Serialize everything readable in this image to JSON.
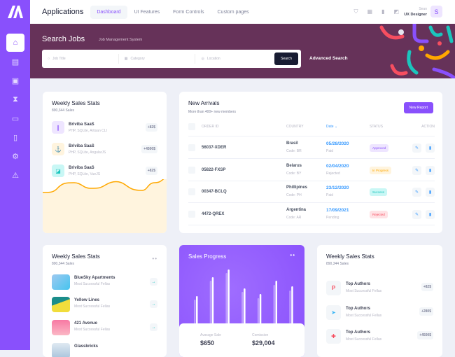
{
  "header": {
    "app_title": "Applications",
    "nav": [
      "Dashboard",
      "UI Features",
      "Form Controls",
      "Custom pages"
    ],
    "user_name": "Sean",
    "user_role": "UX Designer",
    "avatar_letter": "S"
  },
  "banner": {
    "title": "Search Jobs",
    "subtitle": "Job Management System",
    "fields": [
      "Job Title",
      "Category",
      "Location"
    ],
    "search_label": "Search",
    "advanced_label": "Advanced Search",
    "bg_color": "#663259"
  },
  "colors": {
    "accent": "#8950fc",
    "primary": "#3699ff"
  },
  "weekly1": {
    "title": "Weekly Sales Stats",
    "subtitle": "890,344 Sales",
    "items": [
      {
        "name": "Briviba SaaS",
        "sub": "PHP, SQLite, Artisan CLI",
        "value": "+82$"
      },
      {
        "name": "Briviba SaaS",
        "sub": "PHP, SQLite, AngularJS",
        "value": "+4500$"
      },
      {
        "name": "Briviba SaaS",
        "sub": "PHP, SQLite, VueJS",
        "value": "+82$"
      }
    ]
  },
  "arrivals": {
    "title": "New Arrivals",
    "subtitle": "More than 400+ new members",
    "button": "New Report",
    "columns": [
      "ORDER ID",
      "COUNTRY",
      "Date",
      "STATUS",
      "ACTION"
    ],
    "rows": [
      {
        "id": "56037-XDER",
        "country": "Brasil",
        "code": "Code: BR",
        "date": "05/28/2020",
        "pay": "Paid",
        "status": "Approved"
      },
      {
        "id": "05822-FXSP",
        "country": "Belarus",
        "code": "Code: BY",
        "date": "02/04/2020",
        "pay": "Rejected",
        "status": "In Progress"
      },
      {
        "id": "00347-BCLQ",
        "country": "Phillipines",
        "code": "Code: PH",
        "date": "23/12/2020",
        "pay": "Paid",
        "status": "Success"
      },
      {
        "id": "4472-QREX",
        "country": "Argentina",
        "code": "Code: AR",
        "date": "17/09/2021",
        "pay": "Pending",
        "status": "Rejected"
      }
    ]
  },
  "weekly2": {
    "title": "Weekly Sales Stats",
    "subtitle": "890,344 Sales",
    "items": [
      {
        "name": "BlueSky Apartments",
        "sub": "Most Successful Fellas"
      },
      {
        "name": "Yellow Lines",
        "sub": "Most Successful Fellas"
      },
      {
        "name": "421 Avenue",
        "sub": "Most Successful Fellas"
      },
      {
        "name": "Glassbricks",
        "sub": ""
      }
    ]
  },
  "sales_progress": {
    "title": "Sales Progress",
    "avg_label": "Avarage Sale",
    "avg_value": "$650",
    "commission_label": "Comission",
    "commission_value": "$29,004",
    "bars_light": [
      35,
      62,
      73,
      46,
      37,
      56,
      48
    ],
    "bars_white": [
      40,
      67,
      78,
      51,
      43,
      62,
      54
    ]
  },
  "weekly3": {
    "title": "Weekly Sales Stats",
    "subtitle": "890,344 Sales",
    "items": [
      {
        "name": "Top Authors",
        "sub": "Most Successful Fellas",
        "value": "+82$"
      },
      {
        "name": "Top Authors",
        "sub": "Most Successful Fellas",
        "value": "+280$"
      },
      {
        "name": "Top Authors",
        "sub": "Most Successful Fellas",
        "value": "+4500$"
      }
    ]
  }
}
